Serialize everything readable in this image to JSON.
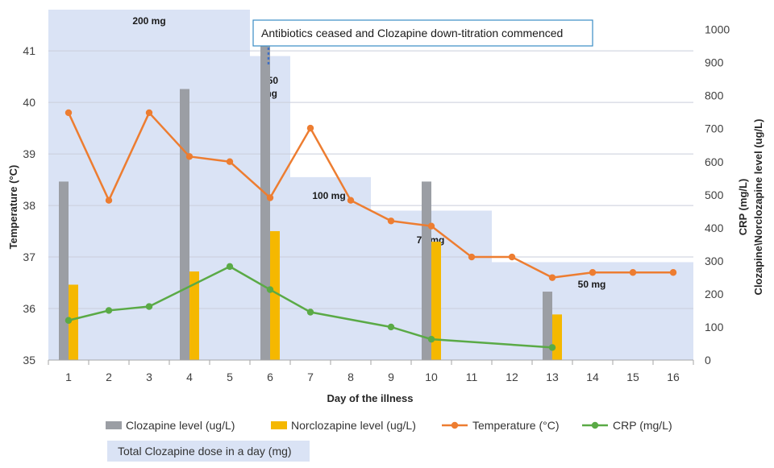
{
  "chart_data": {
    "type": "bar",
    "title": "",
    "xlabel": "Day of the illness",
    "ylabel_left": "Temperature (°C)",
    "ylabel_right": [
      "CRP (mg/L)",
      "Clozapine\\Norclozapine level (ug/L)"
    ],
    "x": [
      1,
      2,
      3,
      4,
      5,
      6,
      7,
      8,
      9,
      10,
      11,
      12,
      13,
      14,
      15,
      16
    ],
    "y_left_lim": [
      35,
      41.8
    ],
    "y_left_ticks": [
      35,
      36,
      37,
      38,
      39,
      40,
      41
    ],
    "y_right_lim": [
      0,
      1060
    ],
    "y_right_ticks": [
      0,
      100,
      200,
      300,
      400,
      500,
      600,
      700,
      800,
      900,
      1000
    ],
    "grid": true,
    "legend_position": "bottom",
    "bars": [
      {
        "name": "Clozapine level (ug/L)",
        "color": "#9b9ea4",
        "axis": "right",
        "points": [
          {
            "x": 1,
            "y": 540
          },
          {
            "x": 4,
            "y": 820
          },
          {
            "x": 6,
            "y": 950
          },
          {
            "x": 10,
            "y": 540
          },
          {
            "x": 13,
            "y": 207
          }
        ]
      },
      {
        "name": "Norclozapine level (ug/L)",
        "color": "#f5b800",
        "axis": "right",
        "points": [
          {
            "x": 1,
            "y": 228
          },
          {
            "x": 4,
            "y": 268
          },
          {
            "x": 6,
            "y": 390
          },
          {
            "x": 10,
            "y": 358
          },
          {
            "x": 13,
            "y": 138
          }
        ]
      }
    ],
    "lines": [
      {
        "name": "Temperature (°C)",
        "color": "#ed7d31",
        "axis": "left",
        "points": [
          {
            "x": 1,
            "y": 39.8
          },
          {
            "x": 2,
            "y": 38.1
          },
          {
            "x": 3,
            "y": 39.8
          },
          {
            "x": 4,
            "y": 38.95
          },
          {
            "x": 5,
            "y": 38.85
          },
          {
            "x": 6,
            "y": 38.15
          },
          {
            "x": 7,
            "y": 39.5
          },
          {
            "x": 8,
            "y": 38.1
          },
          {
            "x": 9,
            "y": 37.7
          },
          {
            "x": 10,
            "y": 37.6
          },
          {
            "x": 11,
            "y": 37.0
          },
          {
            "x": 12,
            "y": 37.0
          },
          {
            "x": 13,
            "y": 36.6
          },
          {
            "x": 14,
            "y": 36.7
          },
          {
            "x": 15,
            "y": 36.7
          },
          {
            "x": 16,
            "y": 36.7
          }
        ]
      },
      {
        "name": "CRP (mg/L)",
        "color": "#5aaa46",
        "axis": "right",
        "points": [
          {
            "x": 1,
            "y": 120
          },
          {
            "x": 2,
            "y": 150
          },
          {
            "x": 3,
            "y": 162
          },
          {
            "x": 5,
            "y": 283
          },
          {
            "x": 6,
            "y": 213
          },
          {
            "x": 7,
            "y": 145
          },
          {
            "x": 9,
            "y": 100
          },
          {
            "x": 10,
            "y": 63
          },
          {
            "x": 13,
            "y": 38
          }
        ]
      }
    ],
    "dose_steps": {
      "name": "Total Clozapine dose in a day (mg)",
      "color": "#dae3f5",
      "axis": "left",
      "segments": [
        {
          "from": 0.5,
          "to": 5.5,
          "top": 41.9,
          "label": "200 mg"
        },
        {
          "from": 5.5,
          "to": 6.5,
          "top": 40.9,
          "label": "150 mg"
        },
        {
          "from": 6.5,
          "to": 8.5,
          "top": 38.55,
          "label": "100 mg"
        },
        {
          "from": 8.5,
          "to": 11.5,
          "top": 37.9,
          "label": "75 mg"
        },
        {
          "from": 11.5,
          "to": 16.5,
          "top": 36.9,
          "label": "50 mg"
        }
      ]
    },
    "annotation": {
      "text": "Antibiotics ceased and Clozapine down-titration commenced",
      "x": 6
    }
  }
}
